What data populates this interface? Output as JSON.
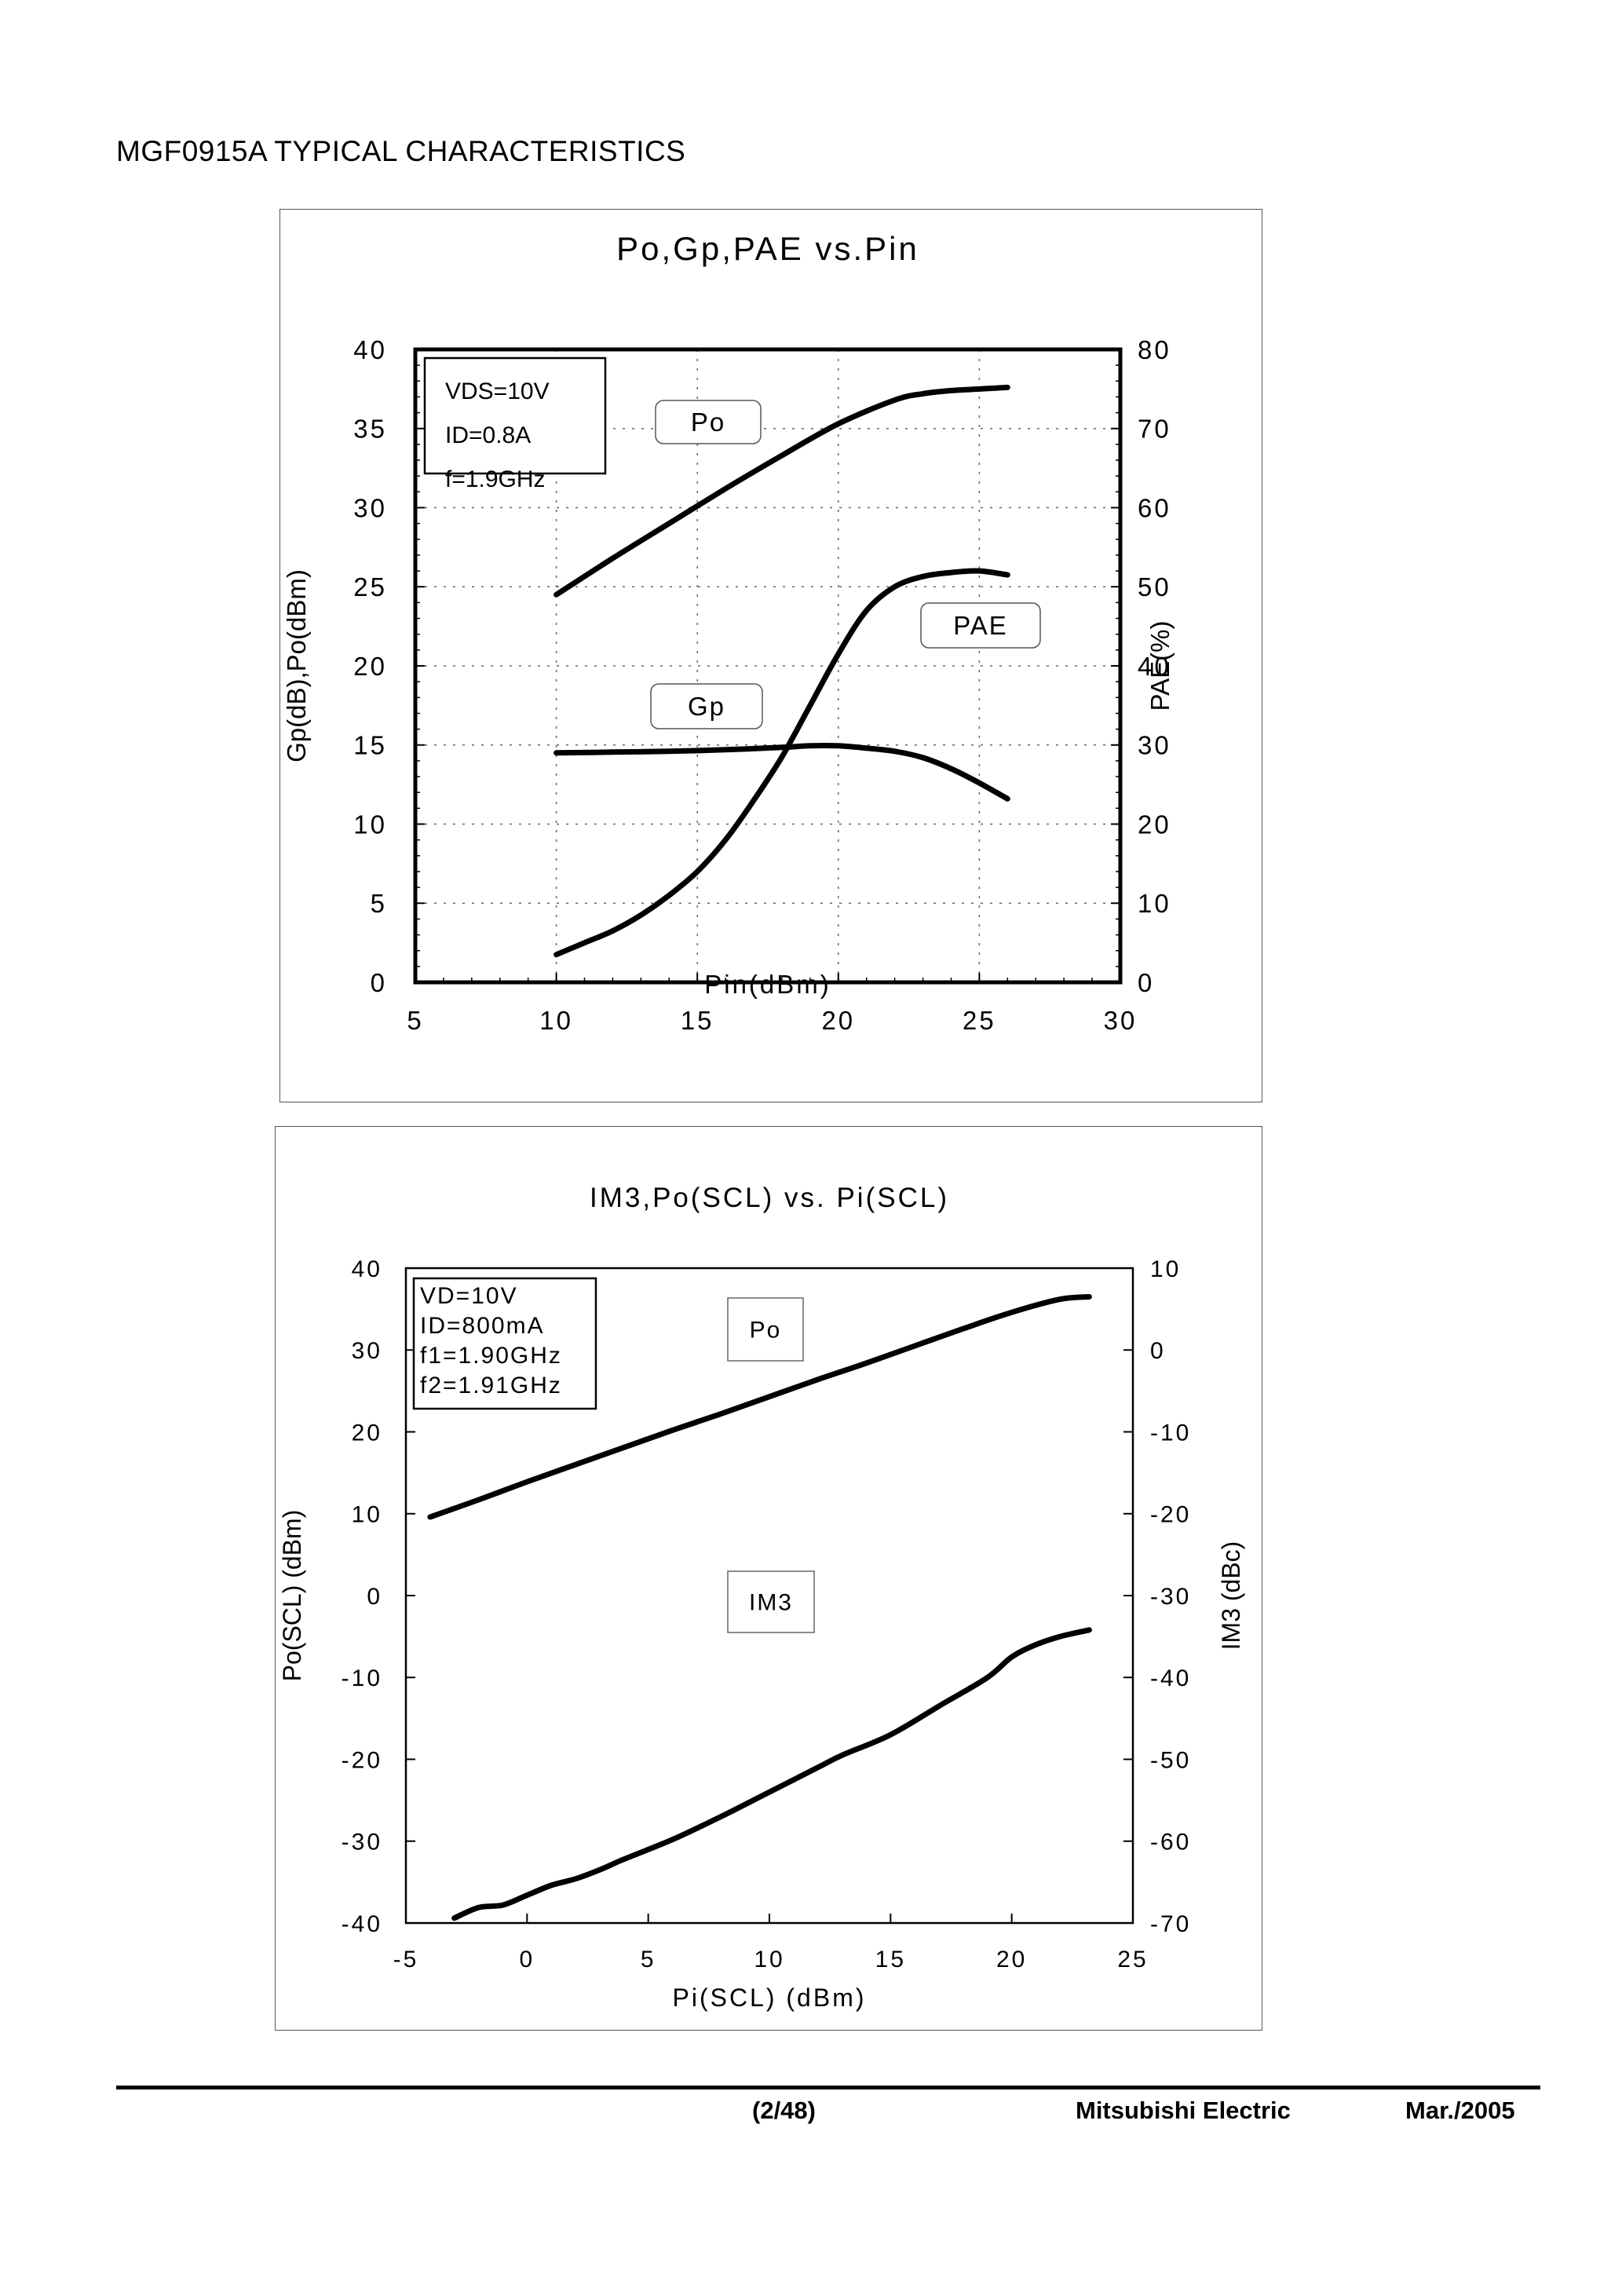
{
  "document": {
    "title": "MGF0915A TYPICAL CHARACTERISTICS"
  },
  "footer": {
    "page": "(2/48)",
    "company": "Mitsubishi Electric",
    "date": "Mar./2005"
  },
  "chart_data": [
    {
      "type": "line",
      "title": "Po,Gp,PAE vs.Pin",
      "xlabel": "Pin(dBm)",
      "ylabel": "Gp(dB),Po(dBm)",
      "y2label": "PAE(%)",
      "xlim": [
        5,
        30
      ],
      "ylim": [
        0,
        40
      ],
      "y2lim": [
        0,
        80
      ],
      "xticks": [
        "5",
        "10",
        "15",
        "20",
        "25",
        "30"
      ],
      "yticks": [
        "0",
        "5",
        "10",
        "15",
        "20",
        "25",
        "30",
        "35",
        "40"
      ],
      "y2ticks": [
        "0",
        "10",
        "20",
        "30",
        "40",
        "50",
        "60",
        "70",
        "80"
      ],
      "grid": true,
      "conditions": [
        "VDS=10V",
        "ID=0.8A",
        "f=1.9GHz"
      ],
      "series": [
        {
          "name": "Po",
          "axis": "left",
          "x": [
            10,
            12,
            14,
            16,
            18,
            20,
            22,
            23,
            24,
            25,
            26
          ],
          "y": [
            24.5,
            26.8,
            29.0,
            31.2,
            33.3,
            35.3,
            36.8,
            37.2,
            37.4,
            37.5,
            37.6
          ]
        },
        {
          "name": "Gp",
          "axis": "left",
          "x": [
            10,
            12,
            14,
            16,
            18,
            19,
            20,
            21,
            22,
            23,
            24,
            25,
            26
          ],
          "y": [
            14.5,
            14.55,
            14.6,
            14.7,
            14.85,
            14.95,
            14.95,
            14.8,
            14.6,
            14.2,
            13.5,
            12.6,
            11.6
          ]
        },
        {
          "name": "PAE",
          "axis": "right",
          "x": [
            10,
            11,
            12,
            13,
            14,
            15,
            16,
            17,
            18,
            19,
            20,
            21,
            22,
            23,
            24,
            25,
            26
          ],
          "y": [
            3.5,
            5.0,
            6.5,
            8.5,
            11.0,
            14.0,
            18.0,
            23.0,
            28.5,
            35.0,
            41.5,
            47.0,
            50.0,
            51.3,
            51.8,
            52.0,
            51.5
          ]
        }
      ]
    },
    {
      "type": "line",
      "title": "IM3,Po(SCL) vs. Pi(SCL)",
      "xlabel": "Pi(SCL) (dBm)",
      "ylabel": "Po(SCL) (dBm)",
      "y2label": "IM3 (dBc)",
      "xlim": [
        -5,
        25
      ],
      "ylim": [
        -40,
        40
      ],
      "y2lim": [
        -70,
        10
      ],
      "xticks": [
        "-5",
        "0",
        "5",
        "10",
        "15",
        "20",
        "25"
      ],
      "yticks": [
        "-40",
        "-30",
        "-20",
        "-10",
        "0",
        "10",
        "20",
        "30",
        "40"
      ],
      "y2ticks": [
        "-70",
        "-60",
        "-50",
        "-40",
        "-30",
        "-20",
        "-10",
        "0",
        "10"
      ],
      "grid": false,
      "conditions": [
        "VD=10V",
        "ID=800mA",
        "f1=1.90GHz",
        "f2=1.91GHz"
      ],
      "series": [
        {
          "name": "Po",
          "axis": "left",
          "x": [
            -4,
            -2,
            0,
            2,
            4,
            6,
            8,
            10,
            12,
            14,
            16,
            18,
            20,
            22,
            23.2
          ],
          "y": [
            9.6,
            11.7,
            13.9,
            16.0,
            18.1,
            20.2,
            22.2,
            24.3,
            26.4,
            28.4,
            30.5,
            32.6,
            34.6,
            36.2,
            36.5
          ]
        },
        {
          "name": "IM3",
          "axis": "right",
          "x": [
            -3,
            -2,
            -1,
            0,
            1,
            2,
            3,
            4,
            6,
            8,
            10,
            12,
            13,
            15,
            17,
            19,
            20,
            21,
            22,
            23.2
          ],
          "y": [
            -69.4,
            -68.1,
            -67.8,
            -66.6,
            -65.4,
            -64.6,
            -63.5,
            -62.2,
            -59.8,
            -57.0,
            -54.0,
            -51.0,
            -49.5,
            -47.0,
            -43.5,
            -40.0,
            -37.5,
            -36.0,
            -35.0,
            -34.2
          ]
        }
      ]
    }
  ]
}
